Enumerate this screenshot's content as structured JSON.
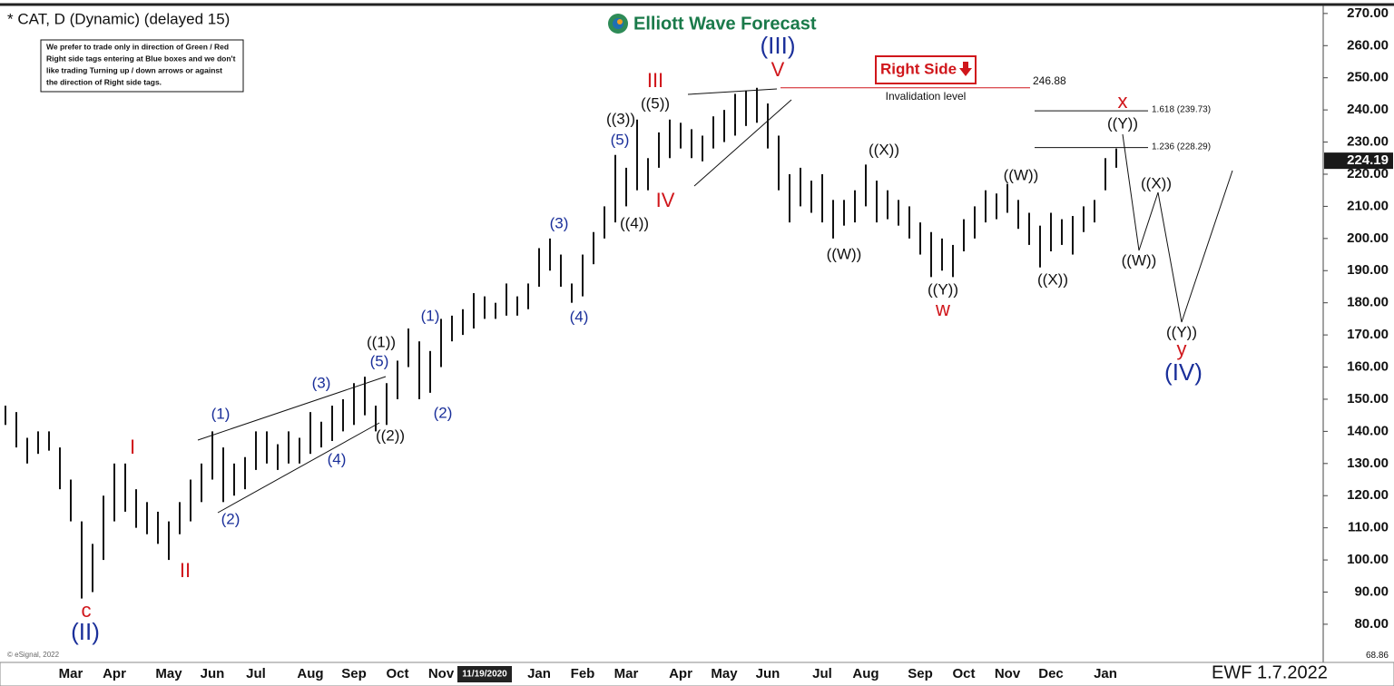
{
  "chart_data": {
    "type": "ohlc",
    "title": "* CAT, D (Dynamic) (delayed 15)",
    "brand": "Elliott Wave Forecast",
    "note": [
      "We prefer to trade only in direction of Green / Red",
      "Right side tags entering at Blue boxes and we don't",
      "like trading Turning up / down arrows or against",
      "the direction of Right side tags."
    ],
    "right_side_tag": "Right Side",
    "invalidation": {
      "value": 246.88,
      "text": "Invalidation level"
    },
    "levels": [
      {
        "value": 239.73,
        "label": "1.618 (239.73)"
      },
      {
        "value": 228.29,
        "label": "1.236 (228.29)"
      }
    ],
    "last_price": 224.19,
    "footer": "EWF 1.7.2022",
    "source": "© eSignal, 2022",
    "color": "#111111",
    "categories": [
      null,
      null,
      null,
      null,
      null,
      null,
      "Mar",
      null,
      null,
      null,
      "Apr",
      null,
      null,
      null,
      null,
      "May",
      null,
      null,
      null,
      "Jun",
      null,
      null,
      null,
      "Jul",
      null,
      null,
      null,
      null,
      "Aug",
      null,
      null,
      null,
      "Sep",
      null,
      null,
      null,
      "Oct",
      null,
      null,
      null,
      "Nov",
      null,
      null,
      null,
      "11/19/2020",
      null,
      null,
      null,
      null,
      "Jan",
      null,
      null,
      null,
      "Feb",
      null,
      null,
      null,
      "Mar",
      null,
      null,
      null,
      null,
      "Apr",
      null,
      null,
      null,
      "May",
      null,
      null,
      null,
      "Jun",
      null,
      null,
      null,
      null,
      "Jul",
      null,
      null,
      null,
      "Aug",
      null,
      null,
      null,
      null,
      "Sep",
      null,
      null,
      null,
      "Oct",
      null,
      null,
      null,
      "Nov",
      null,
      null,
      null,
      "Dec",
      null,
      null,
      null,
      null,
      "Jan",
      null
    ],
    "high": [
      148,
      146,
      138,
      140,
      140,
      135,
      125,
      112,
      105,
      120,
      130,
      130,
      122,
      118,
      115,
      112,
      118,
      125,
      130,
      140,
      135,
      130,
      132,
      140,
      140,
      136,
      140,
      138,
      146,
      143,
      148,
      150,
      155,
      157,
      148,
      155,
      162,
      172,
      168,
      165,
      175,
      176,
      178,
      183,
      182,
      180,
      186,
      182,
      186,
      197,
      200,
      195,
      186,
      195,
      202,
      210,
      226,
      222,
      237,
      225,
      233,
      237,
      236,
      234,
      232,
      238,
      240,
      245,
      246,
      246.88,
      242,
      232,
      220,
      222,
      218,
      220,
      212,
      212,
      215,
      223,
      218,
      215,
      212,
      210,
      205,
      202,
      200,
      198,
      206,
      210,
      215,
      214,
      217,
      212,
      208,
      204,
      208,
      206,
      207,
      210,
      212,
      225,
      228
    ],
    "low": [
      142,
      135,
      130,
      133,
      134,
      122,
      112,
      88,
      90,
      100,
      112,
      115,
      110,
      108,
      105,
      100,
      108,
      112,
      118,
      125,
      118,
      120,
      122,
      128,
      130,
      128,
      130,
      130,
      133,
      135,
      137,
      140,
      142,
      145,
      140,
      142,
      150,
      160,
      150,
      152,
      160,
      168,
      170,
      172,
      175,
      175,
      176,
      176,
      178,
      185,
      190,
      185,
      180,
      182,
      192,
      200,
      205,
      210,
      215,
      215,
      222,
      225,
      228,
      225,
      224,
      228,
      230,
      232,
      235,
      236,
      228,
      215,
      205,
      210,
      208,
      205,
      200,
      204,
      205,
      210,
      205,
      206,
      204,
      200,
      195,
      188,
      190,
      188,
      196,
      200,
      205,
      206,
      208,
      203,
      198,
      191,
      196,
      198,
      195,
      202,
      205,
      215,
      222
    ],
    "ylim": [
      68.86,
      272.5
    ],
    "yticks": [
      {
        "value": 80,
        "label": "80.00"
      },
      {
        "value": 90,
        "label": "90.00"
      },
      {
        "value": 100,
        "label": "100.00"
      },
      {
        "value": 110,
        "label": "110.00"
      },
      {
        "value": 120,
        "label": "120.00"
      },
      {
        "value": 130,
        "label": "130.00"
      },
      {
        "value": 140,
        "label": "140.00"
      },
      {
        "value": 150,
        "label": "150.00"
      },
      {
        "value": 160,
        "label": "160.00"
      },
      {
        "value": 170,
        "label": "170.00"
      },
      {
        "value": 180,
        "label": "180.00"
      },
      {
        "value": 190,
        "label": "190.00"
      },
      {
        "value": 200,
        "label": "200.00"
      },
      {
        "value": 210,
        "label": "210.00"
      },
      {
        "value": 220,
        "label": "220.00"
      },
      {
        "value": 230,
        "label": "230.00"
      },
      {
        "value": 240,
        "label": "240.00"
      },
      {
        "value": 250,
        "label": "250.00"
      },
      {
        "value": 260,
        "label": "260.00"
      },
      {
        "value": 270,
        "label": "270.00"
      }
    ],
    "annotations": [
      {
        "text": "I",
        "color": "#d0161b"
      },
      {
        "text": "II",
        "color": "#d0161b"
      },
      {
        "text": "c",
        "color": "#d0161b"
      },
      {
        "text": "III",
        "color": "#d0161b"
      },
      {
        "text": "IV",
        "color": "#d0161b"
      },
      {
        "text": "V",
        "color": "#d0161b"
      },
      {
        "text": "w",
        "color": "#d0161b"
      },
      {
        "text": "x",
        "color": "#d0161b"
      },
      {
        "text": "y",
        "color": "#d0161b"
      },
      {
        "text": "(II)",
        "color": "#1a2f9a"
      },
      {
        "text": "(III)",
        "color": "#1a2f9a"
      },
      {
        "text": "(IV)",
        "color": "#1a2f9a"
      },
      {
        "text": "(1)",
        "color": "#1a2f9a"
      },
      {
        "text": "(2)",
        "color": "#1a2f9a"
      },
      {
        "text": "(3)",
        "color": "#1a2f9a"
      },
      {
        "text": "(4)",
        "color": "#1a2f9a"
      },
      {
        "text": "(5)",
        "color": "#1a2f9a"
      },
      {
        "text": "(1)",
        "color": "#1a2f9a"
      },
      {
        "text": "(2)",
        "color": "#1a2f9a"
      },
      {
        "text": "(3)",
        "color": "#1a2f9a"
      },
      {
        "text": "(4)",
        "color": "#1a2f9a"
      },
      {
        "text": "(5)",
        "color": "#1a2f9a"
      },
      {
        "text": "((1))",
        "color": "#111111"
      },
      {
        "text": "((2))",
        "color": "#111111"
      },
      {
        "text": "((3))",
        "color": "#111111"
      },
      {
        "text": "((4))",
        "color": "#111111"
      },
      {
        "text": "((5))",
        "color": "#111111"
      },
      {
        "text": "((W))",
        "color": "#111111"
      },
      {
        "text": "((X))",
        "color": "#111111"
      },
      {
        "text": "((Y))",
        "color": "#111111"
      },
      {
        "text": "((W))",
        "color": "#111111"
      },
      {
        "text": "((X))",
        "color": "#111111"
      },
      {
        "text": "((Y))",
        "color": "#111111"
      },
      {
        "text": "((X))",
        "color": "#111111"
      },
      {
        "text": "((W))",
        "color": "#111111"
      },
      {
        "text": "((Y))",
        "color": "#111111"
      }
    ]
  }
}
